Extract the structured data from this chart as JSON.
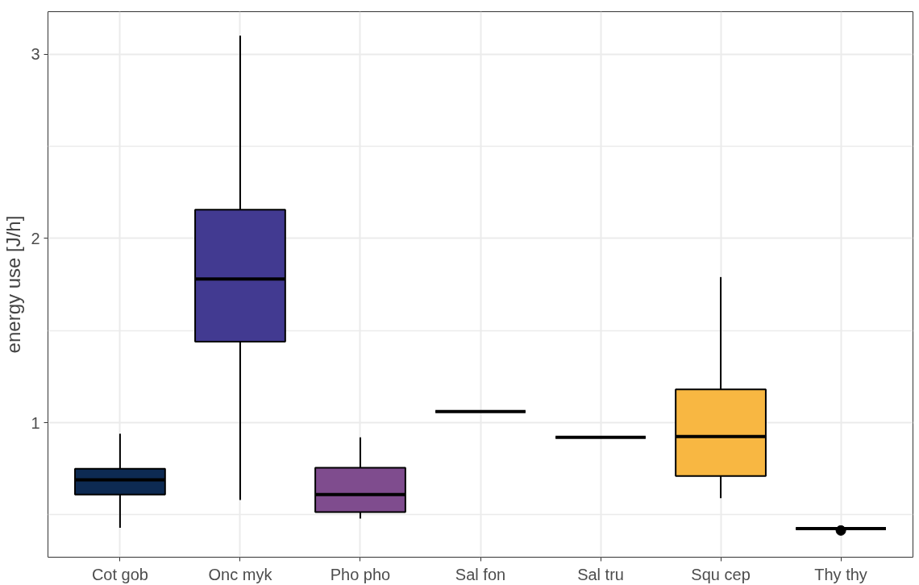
{
  "chart_data": {
    "type": "box",
    "ylabel": "energy use [J/h]",
    "categories": [
      "Cot gob",
      "Onc myk",
      "Pho pho",
      "Sal fon",
      "Sal tru",
      "Squ cep",
      "Thy thy"
    ],
    "colors": [
      "#0d2a52",
      "#423a91",
      "#7f4c8e",
      "#000000",
      "#000000",
      "#f8b742",
      "#000000"
    ],
    "boxes": [
      {
        "low": 0.43,
        "q1": 0.61,
        "median": 0.69,
        "q3": 0.75,
        "high": 0.94
      },
      {
        "low": 0.58,
        "q1": 1.44,
        "median": 1.78,
        "q3": 2.155,
        "high": 3.1
      },
      {
        "low": 0.48,
        "q1": 0.515,
        "median": 0.61,
        "q3": 0.755,
        "high": 0.92
      },
      {
        "low": 1.06,
        "q1": 1.06,
        "median": 1.06,
        "q3": 1.06,
        "high": 1.06
      },
      {
        "low": 0.92,
        "q1": 0.92,
        "median": 0.92,
        "q3": 0.92,
        "high": 0.92
      },
      {
        "low": 0.59,
        "q1": 0.71,
        "median": 0.925,
        "q3": 1.18,
        "high": 1.79
      },
      {
        "low": 0.425,
        "q1": 0.425,
        "median": 0.425,
        "q3": 0.425,
        "high": 0.425,
        "outliers": [
          0.415
        ]
      }
    ],
    "ylim": [
      0.27,
      3.23
    ],
    "yticks": [
      1,
      2,
      3
    ],
    "grid": true
  }
}
